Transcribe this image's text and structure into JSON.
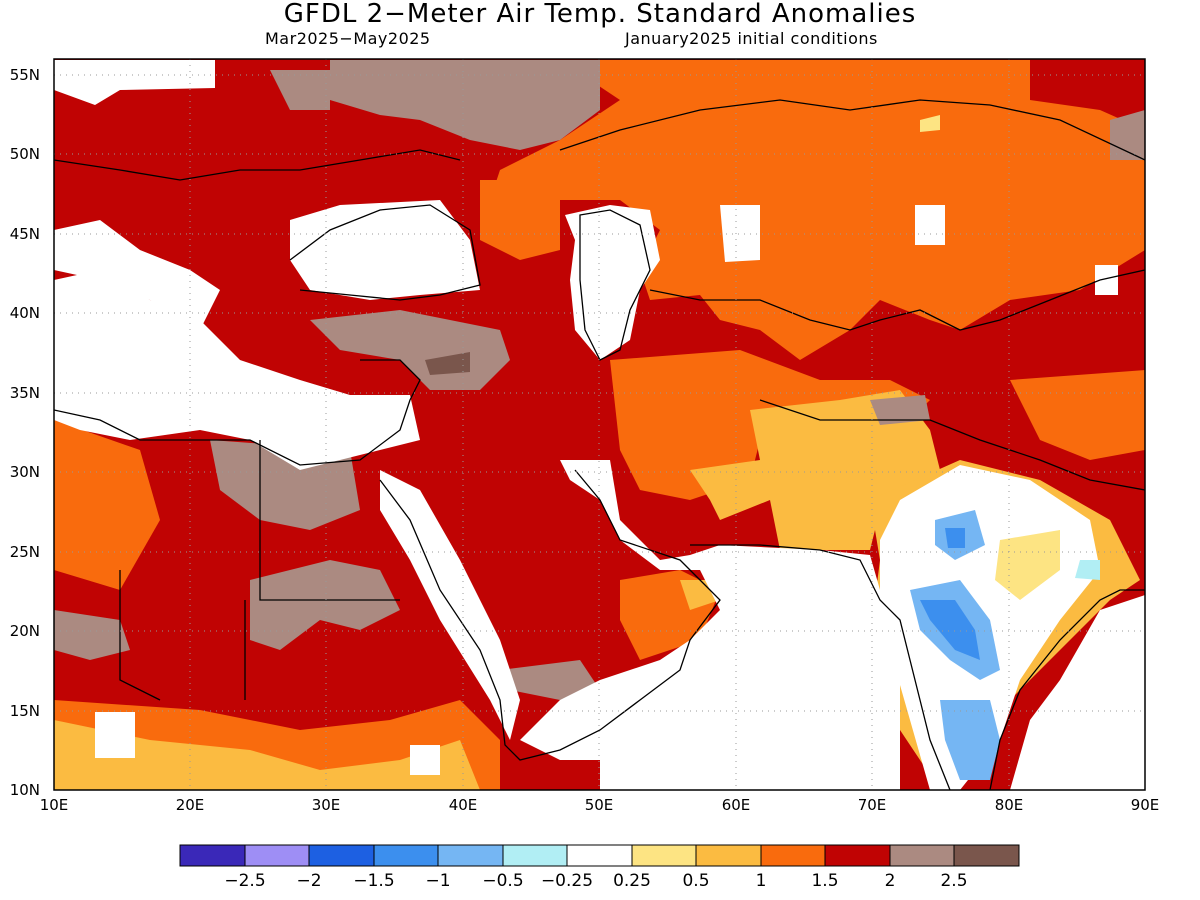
{
  "title": "GFDL 2−Meter Air Temp. Standard Anomalies",
  "subtitle_left": "Mar2025−May2025",
  "subtitle_right": "January2025 initial conditions",
  "map": {
    "lon_range": [
      10,
      90
    ],
    "lat_range": [
      10,
      56
    ],
    "x_ticks": [
      "10E",
      "20E",
      "30E",
      "40E",
      "50E",
      "60E",
      "70E",
      "80E",
      "90E"
    ],
    "y_ticks": [
      "10N",
      "15N",
      "20N",
      "25N",
      "30N",
      "35N",
      "40N",
      "45N",
      "50N",
      "55N"
    ],
    "grid": "dotted"
  },
  "colorbar": {
    "colors": [
      "#3a28b8",
      "#9e8ef5",
      "#1d60e2",
      "#3c8fee",
      "#75b6f3",
      "#b1eef4",
      "#ffffff",
      "#fde483",
      "#fbbb41",
      "#f96b0d",
      "#c00303",
      "#ab8a81",
      "#7a564c"
    ],
    "labels": [
      "−2.5",
      "−2",
      "−1.5",
      "−1",
      "−0.5",
      "−0.25",
      "0.25",
      "0.5",
      "1",
      "1.5",
      "2",
      "2.5"
    ]
  }
}
